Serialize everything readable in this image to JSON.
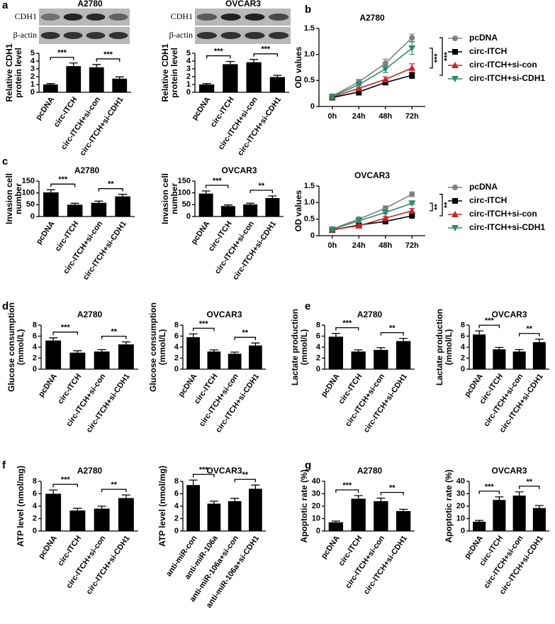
{
  "blots": [
    {
      "title": "A2780",
      "labels": [
        "CDH1",
        "β-actin"
      ]
    },
    {
      "title": "OVCAR3",
      "labels": [
        "CDH1",
        "β-actin"
      ]
    }
  ],
  "chart_data": [
    {
      "type": "bar",
      "panel": "a",
      "ylabel": [
        "Relative CDH1",
        "protein level"
      ],
      "categories": [
        "pcDNA",
        "circ-ITCH",
        "circ-ITCH+si-con",
        "circ-ITCH+si-CDH1"
      ],
      "values": [
        1.0,
        3.35,
        3.2,
        1.75
      ],
      "errors": [
        0.12,
        0.4,
        0.35,
        0.22
      ],
      "color": "#000000",
      "ylim": [
        0,
        5
      ],
      "yticks": [
        0,
        1,
        2,
        3,
        4,
        5
      ],
      "annotations": [
        "***",
        "***"
      ]
    },
    {
      "type": "bar",
      "ylabel": [
        "Relative CDH1",
        "protein level"
      ],
      "categories": [
        "pcDNA",
        "circ-ITCH",
        "circ-ITCH+si-con",
        "circ-ITCH+si-CDH1"
      ],
      "values": [
        1.0,
        3.6,
        3.85,
        1.95
      ],
      "errors": [
        0.12,
        0.35,
        0.35,
        0.22
      ],
      "color": "#000000",
      "ylim": [
        0,
        5
      ],
      "yticks": [
        0,
        1,
        2,
        3,
        4,
        5
      ],
      "annotations": [
        "***",
        "***"
      ]
    },
    {
      "type": "line",
      "panel": "b",
      "title": "A2780",
      "ylabel": [
        "OD values"
      ],
      "categories": [
        "0h",
        "24h",
        "48h",
        "72h"
      ],
      "ylim": [
        0,
        1.5
      ],
      "yticks": [
        0,
        0.5,
        {
          "value": 1,
          "label": "1.0"
        },
        1.5
      ],
      "annotations": [
        "***",
        "***"
      ],
      "series": [
        {
          "name": "pcDNA",
          "color": "#808080",
          "marker": "circle",
          "values": [
            0.2,
            0.47,
            0.83,
            1.32
          ],
          "errors": [
            0.03,
            0.05,
            0.08,
            0.07
          ]
        },
        {
          "name": "circ-ITCH",
          "color": "#000000",
          "marker": "square",
          "values": [
            0.17,
            0.28,
            0.46,
            0.6
          ],
          "errors": [
            0.03,
            0.06,
            0.04,
            0.06
          ]
        },
        {
          "name": "circ-ITCH+si-con",
          "color": "#c0282d",
          "marker": "triangle-up",
          "values": [
            0.18,
            0.35,
            0.52,
            0.74
          ],
          "errors": [
            0.03,
            0.05,
            0.05,
            0.08
          ]
        },
        {
          "name": "circ-ITCH+si-CDH1",
          "color": "#2e8b6e",
          "marker": "triangle-down",
          "values": [
            0.19,
            0.42,
            0.72,
            1.12
          ],
          "errors": [
            0.03,
            0.05,
            0.07,
            0.12
          ]
        }
      ]
    },
    {
      "type": "bar",
      "panel": "c",
      "title": "A2780",
      "ylabel": [
        "Invasion cell",
        "number"
      ],
      "categories": [
        "pcDNA",
        "circ-ITCH",
        "circ-ITCH+si-con",
        "circ-ITCH+si-CDH1"
      ],
      "values": [
        102,
        50,
        58,
        85
      ],
      "errors": [
        11,
        6,
        7,
        9
      ],
      "color": "#000000",
      "ylim": [
        0,
        150
      ],
      "yticks": [
        0,
        50,
        100,
        150
      ],
      "annotations": [
        "***",
        "**"
      ]
    },
    {
      "type": "bar",
      "title": "OVCAR3",
      "ylabel": [
        "Invasion cell",
        "number"
      ],
      "categories": [
        "pcDNA",
        "circ-ITCH",
        "circ-ITCH+si-con",
        "circ-ITCH+si-CDH1"
      ],
      "values": [
        97,
        44,
        51,
        78
      ],
      "errors": [
        11,
        5,
        5,
        9
      ],
      "color": "#000000",
      "ylim": [
        0,
        150
      ],
      "yticks": [
        0,
        50,
        100,
        150
      ],
      "annotations": [
        "***",
        "**"
      ]
    },
    {
      "type": "line",
      "title": "OVCAR3",
      "ylabel": [
        "OD values"
      ],
      "categories": [
        "0h",
        "24h",
        "48h",
        "72h"
      ],
      "ylim": [
        0,
        1.5
      ],
      "yticks": [
        0,
        0.5,
        {
          "value": 1,
          "label": "1.0"
        },
        1.5
      ],
      "annotations": [
        "**",
        "**"
      ],
      "series": [
        {
          "name": "pcDNA",
          "color": "#808080",
          "marker": "circle",
          "values": [
            0.2,
            0.5,
            0.83,
            1.25
          ],
          "errors": [
            0.03,
            0.06,
            0.07,
            0.07
          ]
        },
        {
          "name": "circ-ITCH",
          "color": "#000000",
          "marker": "square",
          "values": [
            0.17,
            0.32,
            0.43,
            0.6
          ],
          "errors": [
            0.03,
            0.04,
            0.07,
            0.03
          ]
        },
        {
          "name": "circ-ITCH+si-con",
          "color": "#c0282d",
          "marker": "triangle-up",
          "values": [
            0.18,
            0.3,
            0.53,
            0.75
          ],
          "errors": [
            0.03,
            0.04,
            0.05,
            0.07
          ]
        },
        {
          "name": "circ-ITCH+si-CDH1",
          "color": "#2e8b6e",
          "marker": "triangle-down",
          "values": [
            0.19,
            0.45,
            0.7,
            0.98
          ],
          "errors": [
            0.03,
            0.05,
            0.04,
            0.04
          ]
        }
      ]
    },
    {
      "type": "bar",
      "panel": "d",
      "title": "A2780",
      "ylabel": [
        "Glucose consumption",
        "(mmol/L)"
      ],
      "categories": [
        "pcDNA",
        "circ-ITCH",
        "circ-ITCH+si-con",
        "circ-ITCH+si-CDH1"
      ],
      "values": [
        5.2,
        3.0,
        3.2,
        4.5
      ],
      "errors": [
        0.5,
        0.35,
        0.35,
        0.45
      ],
      "color": "#000000",
      "ylim": [
        0,
        8
      ],
      "yticks": [
        0,
        2,
        4,
        6,
        8
      ],
      "annotations": [
        "***",
        "**"
      ]
    },
    {
      "type": "bar",
      "title": "OVCAR3",
      "ylabel": [
        "Glucose consumption",
        "(mmol/L)"
      ],
      "categories": [
        "pcDNA",
        "circ-ITCH",
        "circ-ITCH+si-con",
        "circ-ITCH+si-CDH1"
      ],
      "values": [
        5.8,
        3.2,
        2.8,
        4.3
      ],
      "errors": [
        0.6,
        0.3,
        0.3,
        0.45
      ],
      "color": "#000000",
      "ylim": [
        0,
        8
      ],
      "yticks": [
        0,
        2,
        4,
        6,
        8
      ],
      "annotations": [
        "***",
        "**"
      ]
    },
    {
      "type": "bar",
      "panel": "e",
      "title": "A2780",
      "ylabel": [
        "Lactate production",
        "(mmol/L)"
      ],
      "categories": [
        "pcDNA",
        "circ-ITCH",
        "circ-ITCH+si-con",
        "circ-ITCH+si-CDH1"
      ],
      "values": [
        5.9,
        3.2,
        3.5,
        5.1
      ],
      "errors": [
        0.6,
        0.3,
        0.4,
        0.5
      ],
      "color": "#000000",
      "ylim": [
        0,
        8
      ],
      "yticks": [
        0,
        2,
        4,
        6,
        8
      ],
      "annotations": [
        "***",
        "**"
      ]
    },
    {
      "type": "bar",
      "title": "OVCAR3",
      "ylabel": [
        "Lactate production",
        "(mmol/L)"
      ],
      "categories": [
        "pcDNA",
        "circ-ITCH",
        "circ-ITCH+si-con",
        "circ-ITCH+si-CDH1"
      ],
      "values": [
        6.3,
        3.6,
        3.2,
        4.9
      ],
      "errors": [
        0.65,
        0.35,
        0.35,
        0.55
      ],
      "color": "#000000",
      "ylim": [
        0,
        8
      ],
      "yticks": [
        0,
        2,
        4,
        6,
        8
      ],
      "annotations": [
        "***",
        "**"
      ]
    },
    {
      "type": "bar",
      "panel": "f",
      "title": "A2780",
      "ylabel": [
        "ATP level (nmol/mg)"
      ],
      "categories": [
        "pcDNA",
        "circ-ITCH",
        "circ-ITCH+si-con",
        "circ-ITCH+si-CDH1"
      ],
      "values": [
        6.0,
        3.3,
        3.6,
        5.3
      ],
      "errors": [
        0.6,
        0.35,
        0.4,
        0.5
      ],
      "color": "#000000",
      "ylim": [
        0,
        8
      ],
      "yticks": [
        0,
        2,
        4,
        6,
        8
      ],
      "annotations": [
        "***",
        "**"
      ]
    },
    {
      "type": "bar",
      "title": "OVCAR3",
      "ylabel": [
        "ATP level (nmol/mg)"
      ],
      "categories": [
        "anti-miR-con",
        "anti-miR-106a",
        "anti-miR-106a+si-con",
        "anti-miR-106a+si-CDH1"
      ],
      "values": [
        7.4,
        4.4,
        4.8,
        6.8
      ],
      "errors": [
        0.8,
        0.4,
        0.45,
        0.6
      ],
      "color": "#000000",
      "ylim": [
        0,
        8
      ],
      "yticks": [
        0,
        2,
        4,
        6,
        8
      ],
      "annotations": [
        "***",
        "**"
      ]
    },
    {
      "type": "bar",
      "panel": "g",
      "title": "A2780",
      "ylabel": [
        "Apoptotic rate (%)"
      ],
      "categories": [
        "pcDNA",
        "circ-ITCH",
        "circ-ITCH+si-con",
        "circ-ITCH+si-CDH1"
      ],
      "values": [
        7,
        26,
        24,
        16
      ],
      "errors": [
        1,
        2.5,
        2.5,
        1.5
      ],
      "color": "#000000",
      "ylim": [
        0,
        40
      ],
      "yticks": [
        0,
        10,
        20,
        30,
        40
      ],
      "annotations": [
        "***",
        "**"
      ]
    },
    {
      "type": "bar",
      "title": "OVCAR3",
      "ylabel": [
        "Apoptotic rate (%)"
      ],
      "categories": [
        "pcDNA",
        "circ-ITCH",
        "circ-ITCH+si-con",
        "circ-ITCH+si-CDH1"
      ],
      "values": [
        7.5,
        25,
        28.5,
        18.5
      ],
      "errors": [
        1,
        2.5,
        3,
        2
      ],
      "color": "#000000",
      "ylim": [
        0,
        40
      ],
      "yticks": [
        0,
        10,
        20,
        30,
        40
      ],
      "annotations": [
        "***",
        "**"
      ]
    }
  ]
}
